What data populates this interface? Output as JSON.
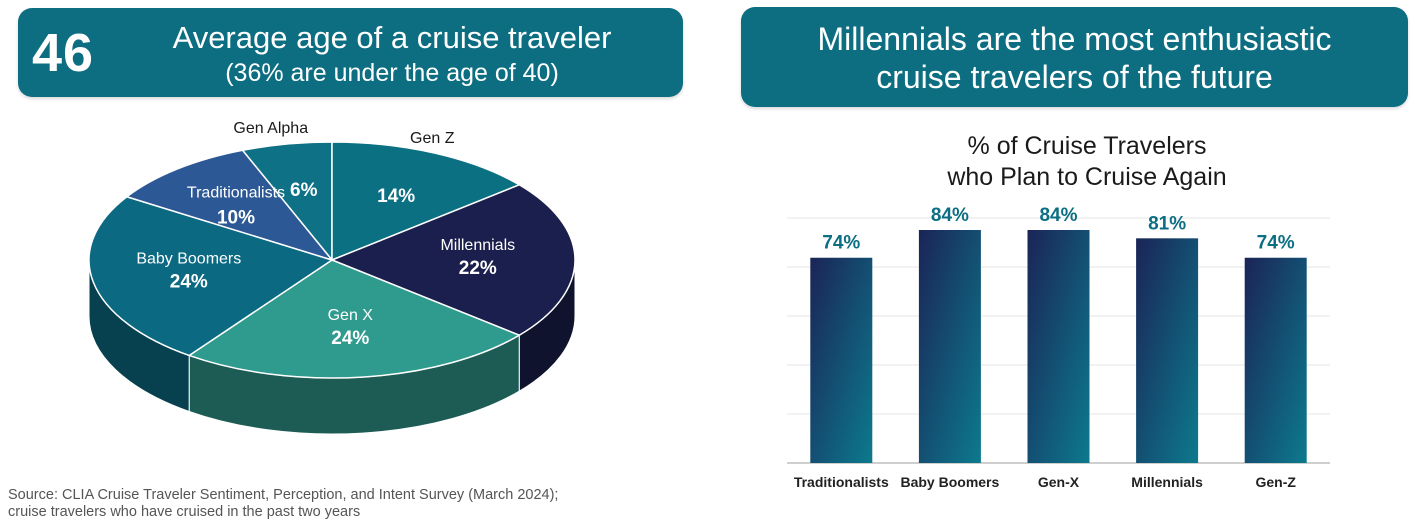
{
  "left_banner": {
    "number": "46",
    "title": "Average age of a cruise traveler",
    "subtitle": "(36% are under the age of 40)"
  },
  "right_banner": {
    "line1": "Millennials are the most enthusiastic",
    "line2": "cruise travelers of the future"
  },
  "source": {
    "line1": "Source: CLIA Cruise Traveler Sentiment, Perception, and Intent Survey (March 2024);",
    "line2": "cruise travelers who have cruised in the past two years"
  },
  "colors": {
    "banner": "#0d6e82",
    "gen_alpha": "#0f7186",
    "gen_z": "#0c7083",
    "millennials": "#1b1f4d",
    "gen_x": "#2f9a8e",
    "baby_boomers": "#0b6a82",
    "traditionalists": "#2c5996",
    "bar_top": "#1b2457",
    "bar_bottom": "#0c7a8d",
    "bar_label": "#0c6e82"
  },
  "chart_data": [
    {
      "type": "pie",
      "title": "",
      "slices": [
        {
          "label": "Gen Alpha",
          "value": 6,
          "display": "6%",
          "color_key": "gen_alpha"
        },
        {
          "label": "Gen Z",
          "value": 14,
          "display": "14%",
          "color_key": "gen_z"
        },
        {
          "label": "Millennials",
          "value": 22,
          "display": "22%",
          "color_key": "millennials"
        },
        {
          "label": "Gen X",
          "value": 24,
          "display": "24%",
          "color_key": "gen_x"
        },
        {
          "label": "Baby Boomers",
          "value": 24,
          "display": "24%",
          "color_key": "baby_boomers"
        },
        {
          "label": "Traditionalists",
          "value": 10,
          "display": "10%",
          "color_key": "traditionalists"
        }
      ]
    },
    {
      "type": "bar",
      "title_line1": "% of Cruise Travelers",
      "title_line2": "who Plan to Cruise Again",
      "categories": [
        "Traditionalists",
        "Baby Boomers",
        "Gen-X",
        "Millennials",
        "Gen-Z"
      ],
      "values": [
        74,
        84,
        84,
        81,
        74
      ],
      "value_labels": [
        "74%",
        "84%",
        "84%",
        "81%",
        "74%"
      ],
      "ylim": [
        0,
        100
      ],
      "grid": true,
      "legend": "none"
    }
  ]
}
